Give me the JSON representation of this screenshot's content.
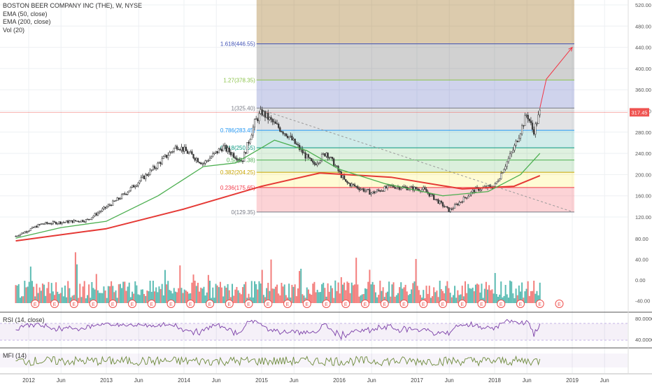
{
  "header": {
    "title": "BOSTON BEER COMPANY INC (THE), W, NYSE",
    "indicators": [
      "EMA (50, close)",
      "EMA (200, close)",
      "Vol (20)"
    ]
  },
  "rsi_title": "RSI (14, close)",
  "mfi_title": "MFI (14)",
  "price_badge": "317.45",
  "chart_data": {
    "type": "candlestick",
    "ylim": [
      110,
      530
    ],
    "price_ticks": [
      "520.00",
      "480.00",
      "440.00",
      "400.00",
      "360.00",
      "320.00",
      "280.00",
      "240.00",
      "200.00",
      "160.00",
      "120.00"
    ],
    "volume_ticks": [
      "80.00",
      "40.00",
      "0.00",
      "-40.00"
    ],
    "rsi_ticks": [
      "80.0000",
      "40.0000"
    ],
    "x_ticks": [
      "2012",
      "Jun",
      "2013",
      "Jun",
      "2014",
      "Jun",
      "2015",
      "Jun",
      "2016",
      "Jun",
      "2017",
      "Jun",
      "2018",
      "Jun",
      "2019",
      "Jun"
    ],
    "price_path": [
      {
        "date": "2011-11",
        "close": 84
      },
      {
        "date": "2012-03",
        "close": 107
      },
      {
        "date": "2012-10",
        "close": 114
      },
      {
        "date": "2013-03",
        "close": 155
      },
      {
        "date": "2013-08",
        "close": 208
      },
      {
        "date": "2013-12",
        "close": 255
      },
      {
        "date": "2014-04",
        "close": 221
      },
      {
        "date": "2014-07",
        "close": 252
      },
      {
        "date": "2014-10",
        "close": 226
      },
      {
        "date": "2014-12",
        "close": 300
      },
      {
        "date": "2015-01",
        "close": 318
      },
      {
        "date": "2015-03",
        "close": 295
      },
      {
        "date": "2015-05",
        "close": 275
      },
      {
        "date": "2015-09",
        "close": 218
      },
      {
        "date": "2015-11",
        "close": 242
      },
      {
        "date": "2016-02",
        "close": 185
      },
      {
        "date": "2016-06",
        "close": 165
      },
      {
        "date": "2016-09",
        "close": 178
      },
      {
        "date": "2017-02",
        "close": 172
      },
      {
        "date": "2017-06",
        "close": 132
      },
      {
        "date": "2017-10",
        "close": 172
      },
      {
        "date": "2018-01",
        "close": 178
      },
      {
        "date": "2018-04",
        "close": 250
      },
      {
        "date": "2018-06",
        "close": 315
      },
      {
        "date": "2018-07",
        "close": 280
      },
      {
        "date": "2018-08",
        "close": 317
      }
    ],
    "ema50": [
      {
        "date": "2011-11",
        "value": 80
      },
      {
        "date": "2012-06",
        "value": 100
      },
      {
        "date": "2013-01",
        "value": 112
      },
      {
        "date": "2013-09",
        "value": 160
      },
      {
        "date": "2014-04",
        "value": 215
      },
      {
        "date": "2014-09",
        "value": 222
      },
      {
        "date": "2015-03",
        "value": 265
      },
      {
        "date": "2015-08",
        "value": 245
      },
      {
        "date": "2016-01",
        "value": 210
      },
      {
        "date": "2016-08",
        "value": 183
      },
      {
        "date": "2017-05",
        "value": 160
      },
      {
        "date": "2017-12",
        "value": 168
      },
      {
        "date": "2018-05",
        "value": 200
      },
      {
        "date": "2018-08",
        "value": 240
      }
    ],
    "ema200": [
      {
        "date": "2011-11",
        "value": 75
      },
      {
        "date": "2013-01",
        "value": 98
      },
      {
        "date": "2014-01",
        "value": 135
      },
      {
        "date": "2015-01",
        "value": 178
      },
      {
        "date": "2015-10",
        "value": 203
      },
      {
        "date": "2016-09",
        "value": 195
      },
      {
        "date": "2017-08",
        "value": 173
      },
      {
        "date": "2018-04",
        "value": 178
      },
      {
        "date": "2018-08",
        "value": 198
      }
    ],
    "fib_levels": [
      {
        "label": "0(129.35)",
        "value": 129.35,
        "color": "#787b86",
        "fill": "rgba(242,54,69,0.22)"
      },
      {
        "label": "0.236(175.65)",
        "value": 175.65,
        "color": "#f23645",
        "fill": "rgba(255,235,59,0.22)"
      },
      {
        "label": "0.382(204.25)",
        "value": 204.25,
        "color": "#c8a400",
        "fill": "rgba(76,175,80,0.2)"
      },
      {
        "label": "0.5(227.38)",
        "value": 227.38,
        "color": "#4caf50",
        "fill": "rgba(76,175,80,0.18)"
      },
      {
        "label": "0.618(250.55)",
        "value": 250.55,
        "color": "#089981",
        "fill": "rgba(0,150,136,0.18)"
      },
      {
        "label": "0.786(283.45)",
        "value": 283.45,
        "color": "#2196f3",
        "fill": "rgba(120,123,134,0.22)"
      },
      {
        "label": "1(325.40)",
        "value": 325.4,
        "color": "#787b86",
        "fill": "rgba(63,81,181,0.25)"
      },
      {
        "label": "1.27(378.35)",
        "value": 378.35,
        "color": "#8bc34a",
        "fill": "rgba(90,90,90,0.28)"
      },
      {
        "label": "1.618(446.55)",
        "value": 446.55,
        "color": "#3f51b5",
        "fill": "rgba(156,107,20,0.35)"
      }
    ],
    "fib_top": 530,
    "trendline": [
      {
        "date": "2015-01",
        "value": 322
      },
      {
        "date": "2019-01",
        "value": 130
      }
    ],
    "target_arrow": [
      {
        "date": "2018-08",
        "value": 326
      },
      {
        "date": "2018-09",
        "value": 380
      },
      {
        "date": "2019-01",
        "value": 440
      }
    ],
    "current_price": 317.45
  },
  "colors": {
    "up": "#26a69a",
    "down": "#ef5350",
    "ema50": "#4caf50",
    "ema200": "#e53935",
    "rsi": "#7b3fa8",
    "mfi": "#6d8a3b",
    "badge": "#ef5350",
    "target_arrow": "#f23645"
  }
}
